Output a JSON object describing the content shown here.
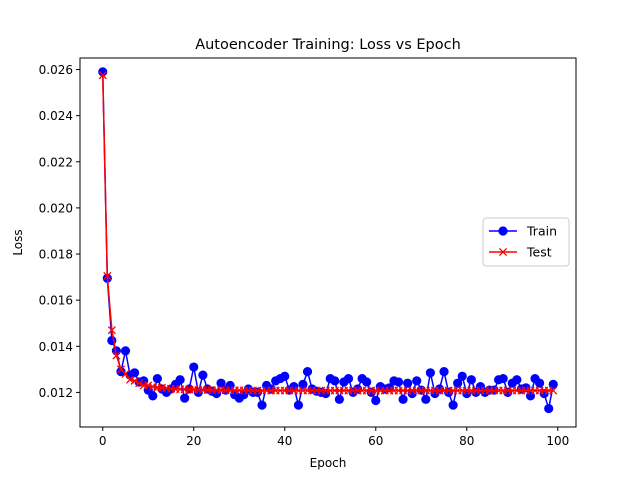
{
  "chart_data": {
    "type": "line",
    "title": "Autoencoder Training: Loss vs Epoch",
    "xlabel": "Epoch",
    "ylabel": "Loss",
    "xlim": [
      -5,
      104
    ],
    "ylim": [
      0.0105,
      0.0265
    ],
    "xticks": [
      0,
      20,
      40,
      60,
      80,
      100
    ],
    "yticks": [
      0.012,
      0.014,
      0.016,
      0.018,
      0.02,
      0.022,
      0.024,
      0.026
    ],
    "ytick_labels": [
      "0.012",
      "0.014",
      "0.016",
      "0.018",
      "0.020",
      "0.022",
      "0.024",
      "0.026"
    ],
    "grid": false,
    "legend_position": "center-right",
    "series": [
      {
        "name": "Train",
        "color": "#0000ff",
        "marker": "circle",
        "values": [
          0.0259,
          0.01695,
          0.01425,
          0.0138,
          0.0129,
          0.0138,
          0.01275,
          0.01285,
          0.01245,
          0.0125,
          0.0121,
          0.01185,
          0.0126,
          0.01215,
          0.012,
          0.01215,
          0.01235,
          0.01255,
          0.01175,
          0.01215,
          0.0131,
          0.012,
          0.01275,
          0.01215,
          0.01205,
          0.01195,
          0.0124,
          0.0121,
          0.0123,
          0.0119,
          0.01175,
          0.0119,
          0.01215,
          0.012,
          0.012,
          0.01145,
          0.0123,
          0.01215,
          0.0125,
          0.0126,
          0.0127,
          0.0121,
          0.01225,
          0.01145,
          0.01235,
          0.0129,
          0.01215,
          0.01205,
          0.012,
          0.01195,
          0.0126,
          0.0125,
          0.0117,
          0.01245,
          0.0126,
          0.012,
          0.01215,
          0.0126,
          0.01245,
          0.012,
          0.01165,
          0.01225,
          0.01215,
          0.0122,
          0.0125,
          0.01245,
          0.0117,
          0.0124,
          0.01195,
          0.0125,
          0.0121,
          0.0117,
          0.01285,
          0.01195,
          0.01215,
          0.0129,
          0.012,
          0.01145,
          0.0124,
          0.0127,
          0.01195,
          0.01255,
          0.012,
          0.01225,
          0.012,
          0.0121,
          0.0121,
          0.01255,
          0.0126,
          0.012,
          0.0124,
          0.01255,
          0.01215,
          0.0122,
          0.01185,
          0.0126,
          0.0124,
          0.01195,
          0.0113,
          0.01235
        ]
      },
      {
        "name": "Test",
        "color": "#ff0000",
        "marker": "x",
        "values": [
          0.02575,
          0.01705,
          0.0147,
          0.0136,
          0.013,
          0.0128,
          0.01255,
          0.0125,
          0.0124,
          0.0123,
          0.0123,
          0.01225,
          0.01222,
          0.0122,
          0.01218,
          0.01216,
          0.01215,
          0.01214,
          0.01213,
          0.01212,
          0.01212,
          0.01211,
          0.01211,
          0.0121,
          0.0121,
          0.0121,
          0.0121,
          0.01209,
          0.01209,
          0.01209,
          0.01209,
          0.01209,
          0.01208,
          0.01208,
          0.01208,
          0.01208,
          0.01208,
          0.01208,
          0.01208,
          0.01208,
          0.01208,
          0.01208,
          0.01208,
          0.01208,
          0.01208,
          0.01208,
          0.01208,
          0.01208,
          0.01208,
          0.01208,
          0.01208,
          0.01208,
          0.01208,
          0.01208,
          0.01208,
          0.01208,
          0.01208,
          0.01208,
          0.01208,
          0.01208,
          0.01208,
          0.01208,
          0.01208,
          0.01208,
          0.01208,
          0.01208,
          0.01208,
          0.01208,
          0.01208,
          0.01208,
          0.01208,
          0.01208,
          0.01208,
          0.01208,
          0.01208,
          0.01208,
          0.01208,
          0.01208,
          0.01208,
          0.01208,
          0.01208,
          0.01208,
          0.01208,
          0.01208,
          0.01208,
          0.01208,
          0.01208,
          0.01208,
          0.01208,
          0.01208,
          0.01208,
          0.01208,
          0.01208,
          0.01208,
          0.01208,
          0.01208,
          0.01208,
          0.01208,
          0.01208,
          0.01208
        ]
      }
    ]
  }
}
